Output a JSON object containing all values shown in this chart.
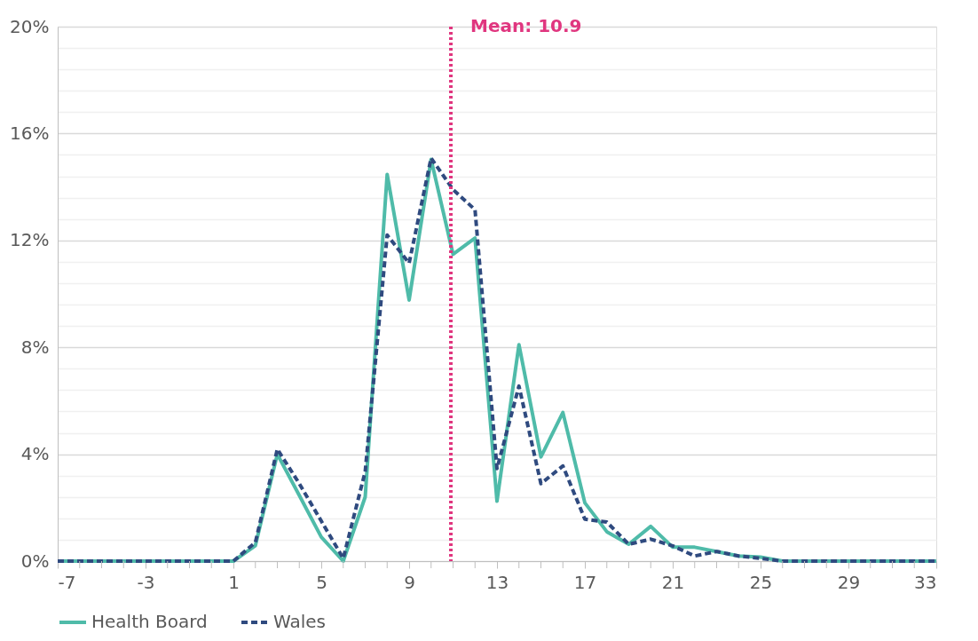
{
  "chart_data": {
    "type": "line",
    "x": [
      -7,
      -6,
      -5,
      -4,
      -3,
      -2,
      -1,
      0,
      1,
      2,
      3,
      4,
      5,
      6,
      7,
      8,
      9,
      10,
      11,
      12,
      13,
      14,
      15,
      16,
      17,
      18,
      19,
      20,
      21,
      22,
      23,
      24,
      25,
      26,
      27,
      28,
      29,
      30,
      31,
      32,
      33
    ],
    "series": [
      {
        "name": "Health Board",
        "color": "#4fbba9",
        "line_style": "solid",
        "values": [
          0,
          0,
          0,
          0,
          0,
          0,
          0,
          0,
          0,
          0.58,
          4.0,
          2.46,
          0.9,
          0,
          2.4,
          14.47,
          9.77,
          15.03,
          11.48,
          12.09,
          2.24,
          8.1,
          3.9,
          5.56,
          2.18,
          1.1,
          0.63,
          1.3,
          0.52,
          0.52,
          0.36,
          0.19,
          0.15,
          0,
          0,
          0,
          0,
          0,
          0,
          0,
          0
        ]
      },
      {
        "name": "Wales",
        "color": "#2f4a7f",
        "line_style": "dashed",
        "values": [
          0,
          0,
          0,
          0,
          0,
          0,
          0,
          0,
          0,
          0.7,
          4.19,
          2.9,
          1.5,
          0.1,
          3.35,
          12.2,
          11.15,
          15.08,
          13.9,
          13.15,
          3.46,
          6.55,
          2.9,
          3.56,
          1.57,
          1.46,
          0.63,
          0.82,
          0.57,
          0.19,
          0.36,
          0.19,
          0.1,
          0,
          0,
          0,
          0,
          0,
          0,
          0,
          0
        ]
      }
    ],
    "xlim": [
      -7,
      33
    ],
    "xticks": [
      -7,
      {
        "value": -6,
        "label": null
      },
      {
        "value": -5,
        "label": null
      },
      {
        "value": -4,
        "label": null
      },
      -3,
      {
        "value": -2,
        "label": null
      },
      {
        "value": -1,
        "label": null
      },
      {
        "value": 0,
        "label": null
      },
      1,
      {
        "value": 2,
        "label": null
      },
      {
        "value": 3,
        "label": null
      },
      {
        "value": 4,
        "label": null
      },
      5,
      {
        "value": 6,
        "label": null
      },
      {
        "value": 7,
        "label": null
      },
      {
        "value": 8,
        "label": null
      },
      9,
      {
        "value": 10,
        "label": null
      },
      {
        "value": 11,
        "label": null
      },
      {
        "value": 12,
        "label": null
      },
      13,
      {
        "value": 14,
        "label": null
      },
      {
        "value": 15,
        "label": null
      },
      {
        "value": 16,
        "label": null
      },
      17,
      {
        "value": 18,
        "label": null
      },
      {
        "value": 19,
        "label": null
      },
      {
        "value": 20,
        "label": null
      },
      21,
      {
        "value": 22,
        "label": null
      },
      {
        "value": 23,
        "label": null
      },
      {
        "value": 24,
        "label": null
      },
      25,
      {
        "value": 26,
        "label": null
      },
      {
        "value": 27,
        "label": null
      },
      {
        "value": 28,
        "label": null
      },
      29,
      {
        "value": 30,
        "label": null
      },
      {
        "value": 31,
        "label": null
      },
      {
        "value": 32,
        "label": null
      },
      33
    ],
    "ylim": [
      0,
      20
    ],
    "yticks": [
      {
        "value": 0,
        "label": "0%"
      },
      {
        "value": 0.8,
        "label": null
      },
      {
        "value": 1.6,
        "label": null
      },
      {
        "value": 2.4,
        "label": null
      },
      {
        "value": 3.2,
        "label": null
      },
      {
        "value": 4,
        "label": "4%"
      },
      {
        "value": 4.8,
        "label": null
      },
      {
        "value": 5.6,
        "label": null
      },
      {
        "value": 6.4,
        "label": null
      },
      {
        "value": 7.2,
        "label": null
      },
      {
        "value": 8,
        "label": "8%"
      },
      {
        "value": 8.8,
        "label": null
      },
      {
        "value": 9.6,
        "label": null
      },
      {
        "value": 10.4,
        "label": null
      },
      {
        "value": 11.2,
        "label": null
      },
      {
        "value": 12,
        "label": "12%"
      },
      {
        "value": 12.8,
        "label": null
      },
      {
        "value": 13.6,
        "label": null
      },
      {
        "value": 14.4,
        "label": null
      },
      {
        "value": 15.2,
        "label": null
      },
      {
        "value": 16,
        "label": "16%"
      },
      {
        "value": 16.8,
        "label": null
      },
      {
        "value": 17.6,
        "label": null
      },
      {
        "value": 18.4,
        "label": null
      },
      {
        "value": 19.2,
        "label": null
      },
      {
        "value": 20,
        "label": "20%"
      }
    ],
    "grid": "y",
    "legend": "bottom",
    "ref_lines": [
      {
        "axis": "x",
        "value": 10.9,
        "label": "Mean: 10.9",
        "color": "#e0367f",
        "line_style": "dotted"
      }
    ]
  }
}
